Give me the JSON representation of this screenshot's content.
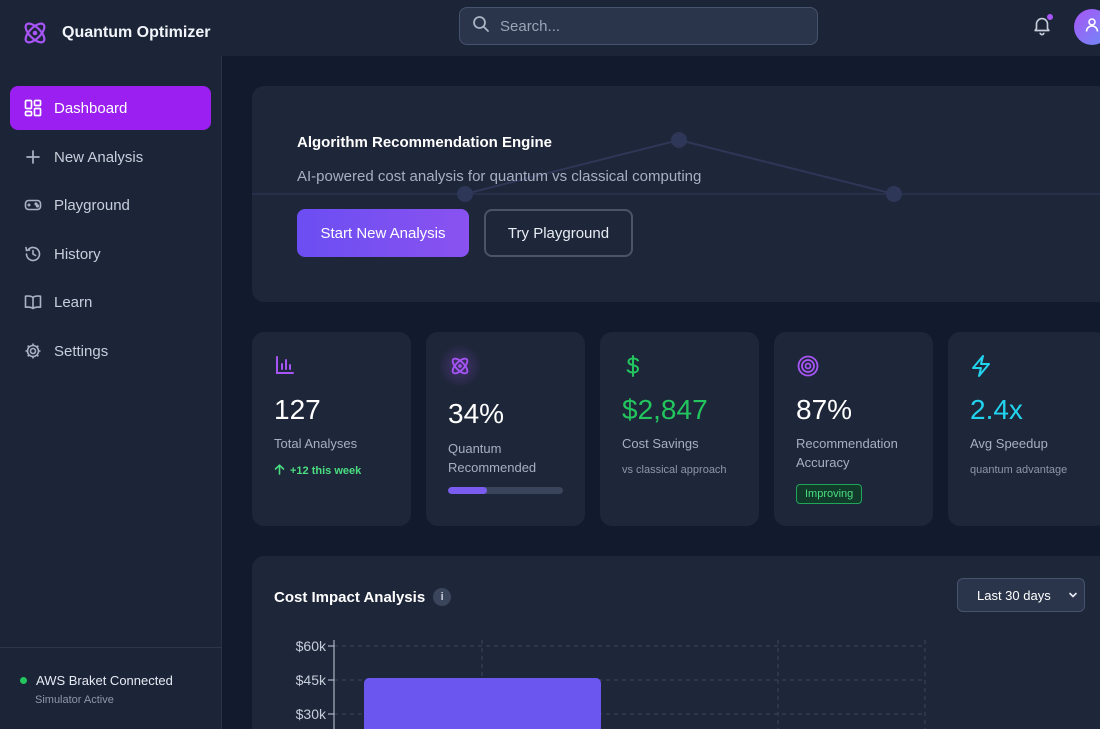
{
  "app": {
    "title": "Quantum Optimizer"
  },
  "search": {
    "placeholder": "Search..."
  },
  "header": {
    "notification_dot_color": "#a855f7",
    "icons": [
      "bell-icon",
      "user-icon"
    ]
  },
  "sidebar": {
    "items": [
      {
        "label": "Dashboard",
        "icon": "dashboard-icon",
        "active": true
      },
      {
        "label": "New Analysis",
        "icon": "plus-icon",
        "active": false
      },
      {
        "label": "Playground",
        "icon": "gamepad-icon",
        "active": false
      },
      {
        "label": "History",
        "icon": "history-icon",
        "active": false
      },
      {
        "label": "Learn",
        "icon": "book-icon",
        "active": false
      },
      {
        "label": "Settings",
        "icon": "gear-icon",
        "active": false
      }
    ],
    "connection": {
      "status": "AWS Braket Connected",
      "sub": "Simulator Active",
      "color": "#22c55e"
    }
  },
  "hero": {
    "title": "Algorithm Recommendation Engine",
    "subtitle": "AI-powered cost analysis for quantum vs classical computing",
    "primary_button": "Start New Analysis",
    "secondary_button": "Try Playground"
  },
  "stats": [
    {
      "value": "127",
      "label": "Total Analyses",
      "trend": "+12 this week",
      "icon": "bar-chart-icon",
      "color": "#a855f7"
    },
    {
      "value": "34%",
      "label": "Quantum Recommended",
      "icon": "atom-icon",
      "progress": 0.34,
      "color": "#a855f7"
    },
    {
      "value": "$2,847",
      "label": "Cost Savings",
      "note": "vs classical approach",
      "icon": "dollar-icon",
      "color": "#22c55e"
    },
    {
      "value": "87%",
      "label": "Recommendation Accuracy",
      "badge": "Improving",
      "icon": "target-icon",
      "color": "#a855f7"
    },
    {
      "value": "2.4x",
      "label": "Avg Speedup",
      "note": "quantum advantage",
      "icon": "lightning-icon",
      "color": "#22d3ee"
    }
  ],
  "chart_panel": {
    "title": "Cost Impact Analysis",
    "info_icon": "i",
    "range": "Last 30 days"
  },
  "chart_data": {
    "type": "bar",
    "y_ticks": [
      "$60k",
      "$45k",
      "$30k"
    ],
    "ylim": [
      0,
      60000
    ],
    "grid": true,
    "series": [
      {
        "values": [
          45000
        ],
        "color": "#6b57f0"
      }
    ]
  }
}
